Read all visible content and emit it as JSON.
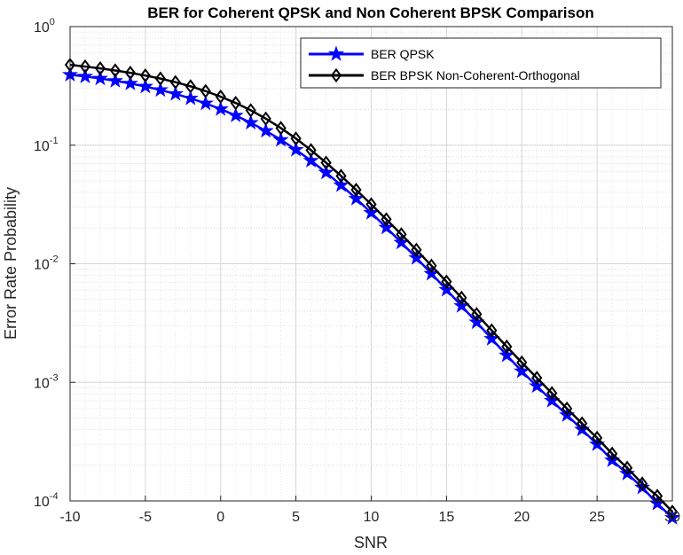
{
  "chart_data": {
    "type": "line",
    "title": "BER for Coherent QPSK and Non Coherent BPSK Comparison",
    "xlabel": "SNR",
    "ylabel": "Error Rate Probability",
    "xlim": [
      -10,
      30
    ],
    "ylim": [
      0.0001,
      1
    ],
    "yscale": "log",
    "grid": true,
    "minor_grid": true,
    "legend_position": "top-right",
    "x_ticks": [
      "-10",
      "-5",
      "0",
      "5",
      "10",
      "15",
      "20",
      "25",
      "30"
    ],
    "y_ticks": [
      {
        "base": "10",
        "exp": "-4"
      },
      {
        "base": "10",
        "exp": "-3"
      },
      {
        "base": "10",
        "exp": "-2"
      },
      {
        "base": "10",
        "exp": "-1"
      },
      {
        "base": "10",
        "exp": "0"
      }
    ],
    "x": [
      -10,
      -9,
      -8,
      -7,
      -6,
      -5,
      -4,
      -3,
      -2,
      -1,
      0,
      1,
      2,
      3,
      4,
      5,
      6,
      7,
      8,
      9,
      10,
      11,
      12,
      13,
      14,
      15,
      16,
      17,
      18,
      19,
      20,
      21,
      22,
      23,
      24,
      25,
      26,
      27,
      28,
      29,
      30
    ],
    "series": [
      {
        "name": "BER QPSK",
        "color": "#0000ff",
        "marker": "star",
        "values": [
          0.3927,
          0.3795,
          0.3649,
          0.3488,
          0.3313,
          0.3124,
          0.2921,
          0.2707,
          0.2483,
          0.2251,
          0.2015,
          0.1779,
          0.1546,
          0.1321,
          0.1109,
          0.0915,
          0.074,
          0.0588,
          0.046,
          0.0354,
          0.0269,
          0.0202,
          0.0151,
          0.0112,
          0.00825,
          0.00604,
          0.00441,
          0.00321,
          0.00233,
          0.00169,
          0.00124,
          0.00093,
          0.0007,
          0.00053,
          0.0004,
          0.0003,
          0.00022,
          0.00017,
          0.00013,
          9.5e-05,
          7.2e-05
        ]
      },
      {
        "name": "BER BPSK Non-Coherent-Orthogonal",
        "color": "#000000",
        "marker": "diamond",
        "values": [
          0.4756,
          0.4604,
          0.4442,
          0.4266,
          0.4076,
          0.3868,
          0.3643,
          0.3398,
          0.3136,
          0.2858,
          0.2567,
          0.2268,
          0.1968,
          0.1674,
          0.1394,
          0.1137,
          0.0908,
          0.0712,
          0.055,
          0.042,
          0.0317,
          0.0237,
          0.0177,
          0.0131,
          0.00963,
          0.00706,
          0.00516,
          0.00376,
          0.00274,
          0.002,
          0.00147,
          0.00109,
          0.00081,
          0.0006,
          0.00045,
          0.00034,
          0.00025,
          0.00019,
          0.00014,
          0.00011,
          8.1e-05
        ]
      }
    ]
  }
}
